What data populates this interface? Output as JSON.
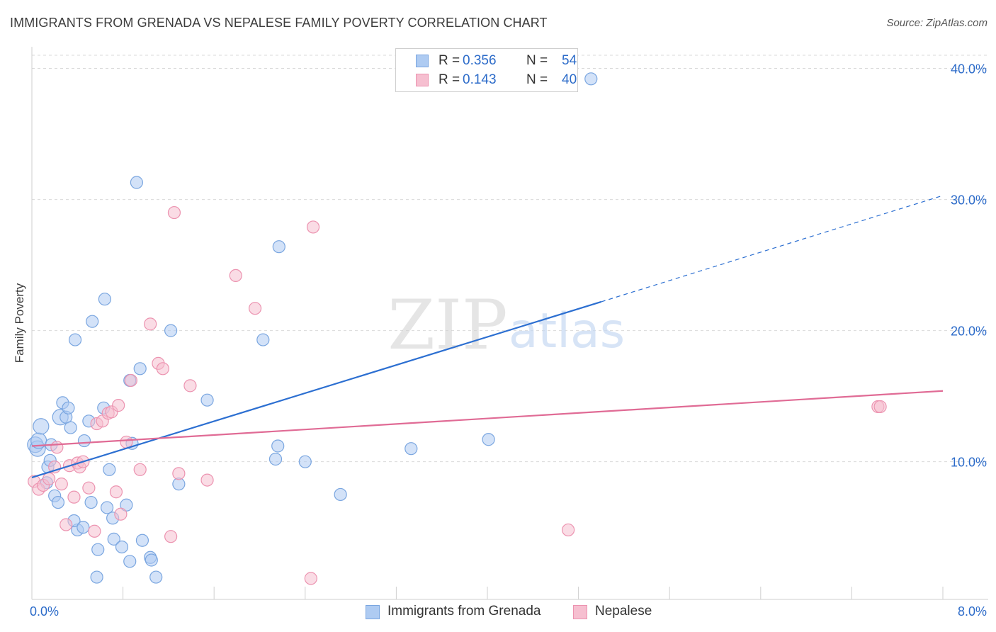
{
  "title": "IMMIGRANTS FROM GRENADA VS NEPALESE FAMILY POVERTY CORRELATION CHART",
  "source": "Source: ZipAtlas.com",
  "watermark": {
    "zip": "ZIP",
    "atlas": "atlas"
  },
  "colors": {
    "blue_fill": "#aecbf2",
    "blue_stroke": "#7aa6e0",
    "blue_line": "#2c6fd1",
    "pink_fill": "#f6bfd0",
    "pink_stroke": "#ec93b0",
    "pink_line": "#e06b95",
    "grid": "#d9d9d9",
    "tick_label": "#2c6bc9"
  },
  "legend_top": {
    "rows": [
      {
        "r_key": "R =",
        "r_val": "0.356",
        "n_key": "N =",
        "n_val": "54"
      },
      {
        "r_key": "R =",
        "r_val": "0.143",
        "n_key": "N =",
        "n_val": "40"
      }
    ]
  },
  "legend_bottom": [
    "Immigrants from Grenada",
    "Nepalese"
  ],
  "chart_data": {
    "type": "scatter",
    "title": "IMMIGRANTS FROM GRENADA VS NEPALESE FAMILY POVERTY CORRELATION CHART",
    "xlabel": "",
    "ylabel": "Family Poverty",
    "xlim": [
      0,
      8
    ],
    "ylim": [
      -0.5,
      41
    ],
    "x_tick_labels": [
      {
        "value": 0,
        "label": "0.0%"
      },
      {
        "value": 8,
        "label": "8.0%"
      }
    ],
    "y_tick_labels": [
      {
        "value": 10,
        "label": "10.0%"
      },
      {
        "value": 20,
        "label": "20.0%"
      },
      {
        "value": 30,
        "label": "30.0%"
      },
      {
        "value": 40,
        "label": "40.0%"
      }
    ],
    "grid": true,
    "legend_position": "bottom",
    "series": [
      {
        "name": "Immigrants from Grenada",
        "r": 0.356,
        "n": 54,
        "trendline": {
          "x": [
            0.0,
            5.0
          ],
          "y": [
            8.8,
            22.2
          ],
          "dashed_to": {
            "x": 8.0,
            "y": 30.3
          }
        },
        "points": [
          [
            0.03,
            11.3
          ],
          [
            0.05,
            11.0
          ],
          [
            0.06,
            11.6
          ],
          [
            0.08,
            12.7
          ],
          [
            0.13,
            8.4
          ],
          [
            0.14,
            9.6
          ],
          [
            0.16,
            10.1
          ],
          [
            0.17,
            11.3
          ],
          [
            0.2,
            7.4
          ],
          [
            0.23,
            6.9
          ],
          [
            0.25,
            13.4
          ],
          [
            0.27,
            14.5
          ],
          [
            0.3,
            13.4
          ],
          [
            0.32,
            14.1
          ],
          [
            0.34,
            12.6
          ],
          [
            0.38,
            19.3
          ],
          [
            0.4,
            4.8
          ],
          [
            0.37,
            5.5
          ],
          [
            0.45,
            5.0
          ],
          [
            0.46,
            11.6
          ],
          [
            0.5,
            13.1
          ],
          [
            0.52,
            6.9
          ],
          [
            0.53,
            20.7
          ],
          [
            0.58,
            3.3
          ],
          [
            0.57,
            1.2
          ],
          [
            0.63,
            14.1
          ],
          [
            0.64,
            22.4
          ],
          [
            0.66,
            6.5
          ],
          [
            0.68,
            9.4
          ],
          [
            0.71,
            5.7
          ],
          [
            0.72,
            4.1
          ],
          [
            0.79,
            3.5
          ],
          [
            0.83,
            6.7
          ],
          [
            0.86,
            2.4
          ],
          [
            0.88,
            11.4
          ],
          [
            0.92,
            31.3
          ],
          [
            0.95,
            17.1
          ],
          [
            0.97,
            4.0
          ],
          [
            1.04,
            2.7
          ],
          [
            1.05,
            2.5
          ],
          [
            1.09,
            1.2
          ],
          [
            1.22,
            20.0
          ],
          [
            1.29,
            8.3
          ],
          [
            1.54,
            14.7
          ],
          [
            2.03,
            19.3
          ],
          [
            2.14,
            10.2
          ],
          [
            2.16,
            11.2
          ],
          [
            2.17,
            26.4
          ],
          [
            2.4,
            10.0
          ],
          [
            2.71,
            7.5
          ],
          [
            3.33,
            11.0
          ],
          [
            4.01,
            11.7
          ],
          [
            4.91,
            39.2
          ],
          [
            0.86,
            16.2
          ]
        ]
      },
      {
        "name": "Nepalese",
        "r": 0.143,
        "n": 40,
        "trendline": {
          "x": [
            0.0,
            8.0
          ],
          "y": [
            11.2,
            15.4
          ]
        },
        "points": [
          [
            0.02,
            8.5
          ],
          [
            0.06,
            7.9
          ],
          [
            0.1,
            8.2
          ],
          [
            0.15,
            8.7
          ],
          [
            0.2,
            9.6
          ],
          [
            0.22,
            11.1
          ],
          [
            0.26,
            8.3
          ],
          [
            0.3,
            5.2
          ],
          [
            0.33,
            9.7
          ],
          [
            0.37,
            7.3
          ],
          [
            0.4,
            9.9
          ],
          [
            0.42,
            9.6
          ],
          [
            0.45,
            10.0
          ],
          [
            0.5,
            8.0
          ],
          [
            0.55,
            4.7
          ],
          [
            0.57,
            12.9
          ],
          [
            0.62,
            13.1
          ],
          [
            0.67,
            13.7
          ],
          [
            0.7,
            13.8
          ],
          [
            0.74,
            7.7
          ],
          [
            0.76,
            14.3
          ],
          [
            0.78,
            6.0
          ],
          [
            0.83,
            11.5
          ],
          [
            0.87,
            16.2
          ],
          [
            0.95,
            9.4
          ],
          [
            1.04,
            20.5
          ],
          [
            1.11,
            17.5
          ],
          [
            1.15,
            17.1
          ],
          [
            1.22,
            4.3
          ],
          [
            1.25,
            29.0
          ],
          [
            1.29,
            9.1
          ],
          [
            1.39,
            15.8
          ],
          [
            1.54,
            8.6
          ],
          [
            1.79,
            24.2
          ],
          [
            1.96,
            21.7
          ],
          [
            2.45,
            1.1
          ],
          [
            2.47,
            27.9
          ],
          [
            4.71,
            4.8
          ],
          [
            7.43,
            14.2
          ],
          [
            7.45,
            14.2
          ]
        ]
      }
    ]
  }
}
